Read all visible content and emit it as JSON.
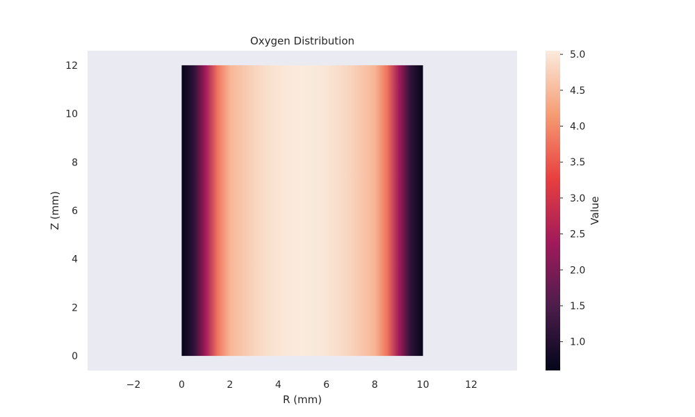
{
  "chart_data": {
    "type": "heatmap",
    "title": "Oxygen Distribution",
    "xlabel": "R (mm)",
    "ylabel": "Z (mm)",
    "xlim": [
      -3.9,
      13.9
    ],
    "ylim": [
      -0.6,
      12.6
    ],
    "xticks": [
      -2,
      0,
      2,
      4,
      6,
      8,
      10,
      12
    ],
    "xtick_labels": [
      "−2",
      "0",
      "2",
      "4",
      "6",
      "8",
      "10",
      "12"
    ],
    "yticks": [
      0,
      2,
      4,
      6,
      8,
      10,
      12
    ],
    "ytick_labels": [
      "0",
      "2",
      "4",
      "6",
      "8",
      "10",
      "12"
    ],
    "x_range": [
      0,
      10
    ],
    "z_range": [
      0,
      12
    ],
    "r": [
      0,
      0.5,
      1,
      1.5,
      2,
      2.5,
      3,
      3.5,
      4,
      4.5,
      5,
      5.5,
      6,
      6.5,
      7,
      7.5,
      8,
      8.5,
      9,
      9.5,
      10
    ],
    "profile": [
      0.6,
      1.1,
      2.4,
      3.8,
      4.45,
      4.62,
      4.78,
      4.9,
      4.98,
      5.03,
      5.05,
      5.03,
      4.98,
      4.9,
      4.78,
      4.62,
      4.45,
      3.8,
      2.4,
      1.1,
      0.6
    ],
    "note_profile": "",
    "colorbar": {
      "label": "Value",
      "min": 0.6,
      "max": 5.05,
      "ticks": [
        1.0,
        1.5,
        2.0,
        2.5,
        3.0,
        3.5,
        4.0,
        4.5,
        5.0
      ],
      "tick_labels": [
        "1.0",
        "1.5",
        "2.0",
        "2.5",
        "3.0",
        "3.5",
        "4.0",
        "4.5",
        "5.0"
      ],
      "colormap": "rocket",
      "colors": [
        "#03051a",
        "#4c1d4b",
        "#a11a5b",
        "#e83f3f",
        "#f69c73",
        "#faebdd"
      ]
    },
    "background_color": "#eaeaf2",
    "grid": false
  }
}
